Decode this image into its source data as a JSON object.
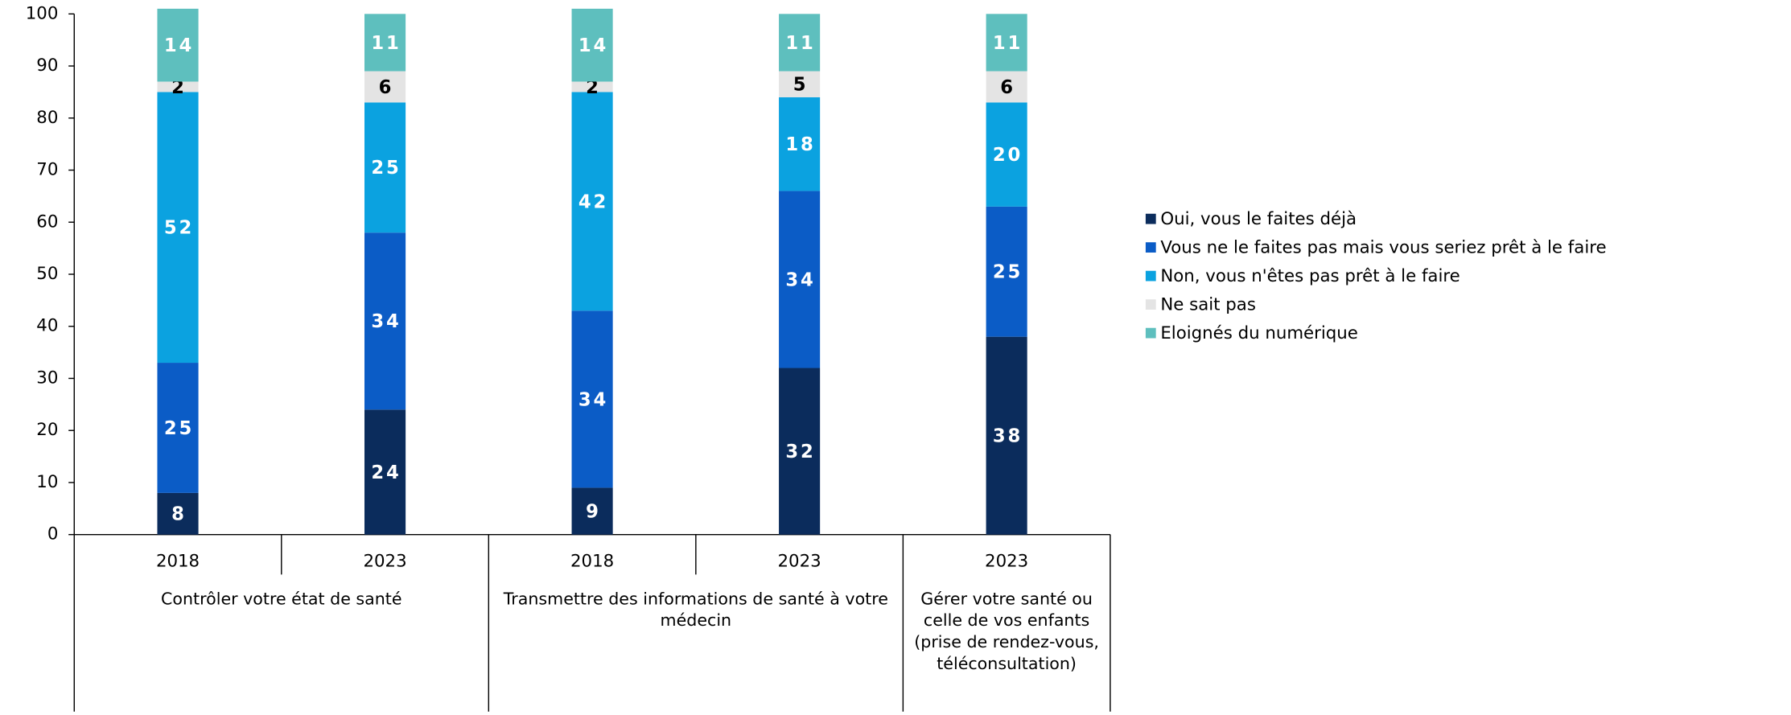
{
  "chart_data": {
    "type": "bar",
    "stacked": true,
    "groups": [
      {
        "label": "Contrôler votre état de santé",
        "categories": [
          "2018",
          "2023"
        ]
      },
      {
        "label": "Transmettre des informations de santé à votre médecin",
        "categories": [
          "2018",
          "2023"
        ]
      },
      {
        "label": "Gérer votre santé ou celle de vos enfants (prise de rendez-vous, téléconsultation)",
        "categories": [
          "2023"
        ]
      }
    ],
    "series": [
      {
        "name": "Oui, vous le faites déjà",
        "color": "#0b2c5c",
        "values": [
          8,
          24,
          9,
          32,
          38
        ]
      },
      {
        "name": "Vous ne le faites pas mais vous seriez prêt à le faire",
        "color": "#0b5cc6",
        "values": [
          25,
          34,
          34,
          34,
          25
        ]
      },
      {
        "name": "Non, vous n'êtes pas prêt à le faire",
        "color": "#0ba2e0",
        "values": [
          52,
          25,
          42,
          18,
          20
        ]
      },
      {
        "name": "Ne sait pas",
        "color": "#e4e4e4",
        "values": [
          2,
          6,
          2,
          5,
          6
        ]
      },
      {
        "name": "Eloignés du numérique",
        "color": "#5ebfbe",
        "values": [
          14,
          11,
          14,
          11,
          11
        ]
      }
    ],
    "ylim": [
      0,
      100
    ],
    "yticks": [
      0,
      10,
      20,
      30,
      40,
      50,
      60,
      70,
      80,
      90,
      100
    ],
    "legend": "right"
  }
}
